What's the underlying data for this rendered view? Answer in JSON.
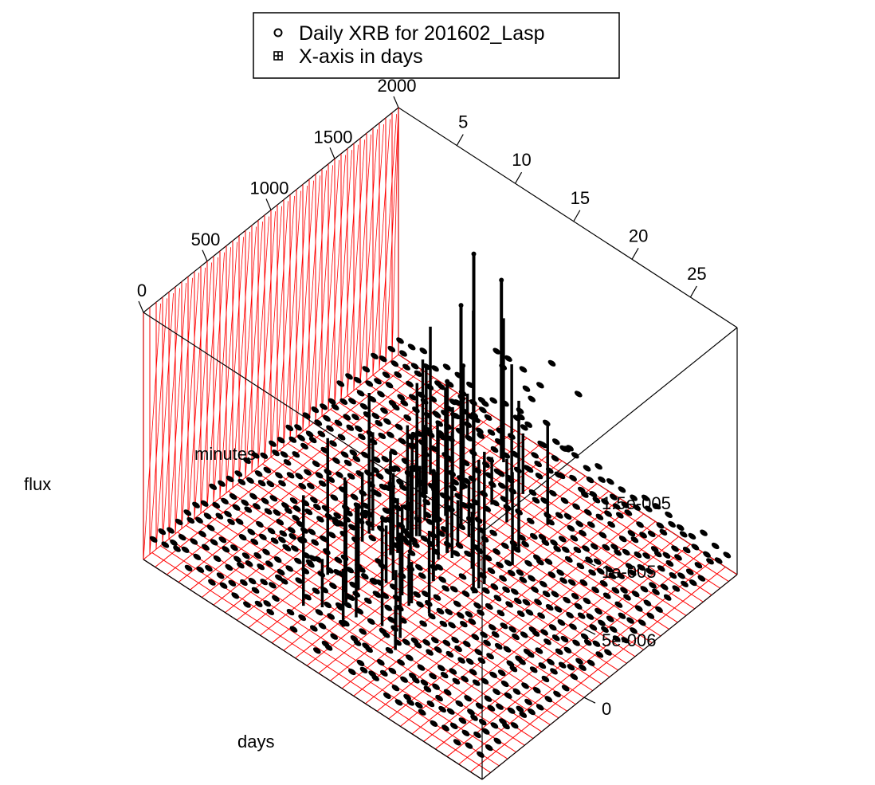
{
  "chart_data": {
    "type": "scatter",
    "subtype": "3d-scatter",
    "title": "",
    "xlabel": "days",
    "ylabel": "minutes",
    "zlabel": "flux",
    "x_ticks": [
      "5",
      "10",
      "15",
      "20",
      "25"
    ],
    "y_ticks": [
      "0",
      "500",
      "1000",
      "1500",
      "2000"
    ],
    "z_ticks": [
      "0",
      "5e-006",
      "1e-005",
      "1.5e-005"
    ],
    "xlim": [
      0,
      29
    ],
    "ylim": [
      0,
      2000
    ],
    "zlim": [
      0,
      1.8e-05
    ],
    "legend": {
      "position": "top",
      "entries": [
        {
          "label": "Daily XRB for 201602_Lasp",
          "symbol": "open-circle"
        },
        {
          "label": "X-axis in days",
          "symbol": "boxed-plus"
        }
      ]
    },
    "grid": true,
    "grid_color": "#ff0000",
    "point_color": "#000000",
    "series": [
      {
        "name": "Daily XRB for 201602_Lasp",
        "baseline_flux": 1.5e-06,
        "notable_points": [
          {
            "day": 13,
            "minute": 1300,
            "flux": 1.6e-05
          },
          {
            "day": 13,
            "minute": 1400,
            "flux": 1.9e-05
          },
          {
            "day": 14,
            "minute": 1100,
            "flux": 1.25e-05
          },
          {
            "day": 11,
            "minute": 1800,
            "flux": 1.3e-05
          },
          {
            "day": 11,
            "minute": 1500,
            "flux": 9e-06
          },
          {
            "day": 15,
            "minute": 900,
            "flux": 8e-06
          }
        ]
      }
    ]
  }
}
